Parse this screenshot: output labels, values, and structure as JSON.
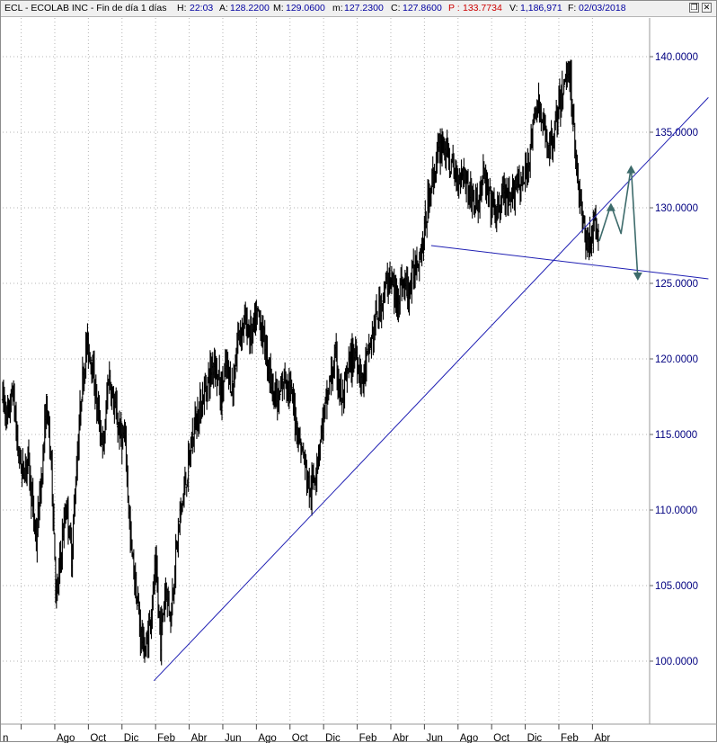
{
  "header": {
    "title": "ECL - ECOLAB INC - Fin de día 1 días",
    "h_label": "H:",
    "h_value": "22:03",
    "a_label": "A:",
    "a_value": "128.2200",
    "m_label": "M:",
    "m_value": "129.0600",
    "mn_label": "m:",
    "mn_value": "127.2300",
    "c_label": "C:",
    "c_value": "127.8600",
    "p_label": "P :",
    "p_value": "133.7734",
    "v_label": "V:",
    "v_value": "1,186,971",
    "f_label": "F:",
    "f_value": "02/03/2018"
  },
  "window_buttons": {
    "restore": "❐",
    "close": "✕"
  },
  "colors": {
    "candles": "#000000",
    "trendline": "#1f1fb3",
    "forecast_arrow": "#3d6b6b",
    "axis_text": "#000080",
    "grid": "#b4b4b4"
  },
  "chart_data": {
    "type": "candlestick",
    "ticker": "ECL",
    "yaxis": {
      "ticks": [
        "100.0000",
        "105.0000",
        "110.0000",
        "115.0000",
        "120.0000",
        "125.0000",
        "130.0000",
        "135.0000",
        "140.0000"
      ],
      "tick_values": [
        100,
        105,
        110,
        115,
        120,
        125,
        130,
        135,
        140
      ],
      "range": [
        97.9,
        143.5
      ]
    },
    "xaxis": {
      "labels": [
        "n",
        "Ago",
        "Oct",
        "Dic",
        "Feb",
        "Abr",
        "Jun",
        "Ago",
        "Oct",
        "Dic",
        "Feb",
        "Abr",
        "Jun",
        "Ago",
        "Oct",
        "Dic",
        "Feb",
        "Abr"
      ],
      "grid": "dotted",
      "range_months": [
        0,
        42
      ]
    },
    "price_path": [
      [
        0.0,
        117.5
      ],
      [
        0.3,
        116.0
      ],
      [
        0.6,
        118.0
      ],
      [
        0.9,
        114.0
      ],
      [
        1.2,
        112.5
      ],
      [
        1.5,
        113.5
      ],
      [
        1.8,
        110.0
      ],
      [
        2.0,
        108.0
      ],
      [
        2.3,
        112.0
      ],
      [
        2.6,
        117.0
      ],
      [
        2.9,
        113.0
      ],
      [
        3.2,
        104.0
      ],
      [
        3.5,
        107.5
      ],
      [
        3.8,
        110.5
      ],
      [
        4.1,
        107.0
      ],
      [
        4.4,
        113.0
      ],
      [
        4.7,
        118.0
      ],
      [
        5.0,
        121.0
      ],
      [
        5.3,
        120.0
      ],
      [
        5.6,
        117.0
      ],
      [
        6.0,
        114.0
      ],
      [
        6.3,
        119.0
      ],
      [
        6.6,
        117.0
      ],
      [
        7.0,
        115.0
      ],
      [
        7.3,
        114.5
      ],
      [
        7.6,
        108.0
      ],
      [
        7.9,
        105.0
      ],
      [
        8.2,
        102.0
      ],
      [
        8.5,
        100.5
      ],
      [
        8.8,
        103.0
      ],
      [
        9.1,
        106.0
      ],
      [
        9.4,
        101.5
      ],
      [
        9.7,
        105.0
      ],
      [
        10.0,
        103.0
      ],
      [
        10.3,
        107.0
      ],
      [
        10.6,
        110.0
      ],
      [
        11.0,
        112.5
      ],
      [
        11.4,
        115.5
      ],
      [
        11.8,
        117.0
      ],
      [
        12.2,
        118.5
      ],
      [
        12.6,
        120.0
      ],
      [
        13.0,
        117.5
      ],
      [
        13.3,
        119.5
      ],
      [
        13.7,
        118.0
      ],
      [
        14.0,
        121.5
      ],
      [
        14.4,
        122.5
      ],
      [
        14.8,
        121.5
      ],
      [
        15.2,
        123.0
      ],
      [
        15.6,
        121.0
      ],
      [
        16.0,
        118.5
      ],
      [
        16.4,
        117.0
      ],
      [
        16.8,
        119.0
      ],
      [
        17.2,
        117.5
      ],
      [
        17.6,
        115.0
      ],
      [
        18.0,
        113.0
      ],
      [
        18.3,
        111.0
      ],
      [
        18.6,
        112.5
      ],
      [
        19.0,
        115.5
      ],
      [
        19.4,
        118.0
      ],
      [
        19.8,
        120.0
      ],
      [
        20.2,
        117.0
      ],
      [
        20.6,
        119.5
      ],
      [
        21.0,
        120.5
      ],
      [
        21.4,
        118.5
      ],
      [
        21.8,
        120.5
      ],
      [
        22.2,
        122.5
      ],
      [
        22.6,
        124.0
      ],
      [
        23.0,
        125.5
      ],
      [
        23.4,
        124.0
      ],
      [
        23.8,
        125.0
      ],
      [
        24.2,
        124.5
      ],
      [
        24.6,
        126.5
      ],
      [
        25.0,
        127.5
      ],
      [
        25.4,
        131.0
      ],
      [
        25.8,
        133.0
      ],
      [
        26.2,
        134.5
      ],
      [
        26.6,
        133.0
      ],
      [
        27.0,
        132.0
      ],
      [
        27.4,
        132.5
      ],
      [
        27.8,
        131.0
      ],
      [
        28.2,
        130.0
      ],
      [
        28.6,
        132.0
      ],
      [
        29.0,
        130.5
      ],
      [
        29.4,
        129.5
      ],
      [
        29.8,
        131.0
      ],
      [
        30.2,
        130.0
      ],
      [
        30.6,
        132.0
      ],
      [
        31.0,
        131.5
      ],
      [
        31.4,
        134.0
      ],
      [
        31.8,
        137.0
      ],
      [
        32.2,
        135.0
      ],
      [
        32.6,
        134.0
      ],
      [
        33.0,
        136.0
      ],
      [
        33.4,
        138.0
      ],
      [
        33.7,
        139.5
      ],
      [
        34.0,
        135.0
      ],
      [
        34.3,
        131.0
      ],
      [
        34.6,
        128.5
      ],
      [
        34.9,
        127.5
      ],
      [
        35.2,
        129.0
      ],
      [
        35.5,
        127.8
      ]
    ],
    "trendlines": [
      {
        "name": "",
        "points": [
          [
            9.0,
            98.7
          ],
          [
            42.0,
            137.3
          ]
        ]
      },
      {
        "name": "",
        "points": [
          [
            25.5,
            127.5
          ],
          [
            42.0,
            125.3
          ]
        ]
      }
    ],
    "forecast_arrow": {
      "points": [
        [
          35.5,
          127.8
        ],
        [
          36.2,
          130.2
        ],
        [
          36.8,
          128.3
        ],
        [
          37.4,
          132.7
        ],
        [
          37.8,
          125.3
        ]
      ]
    }
  }
}
